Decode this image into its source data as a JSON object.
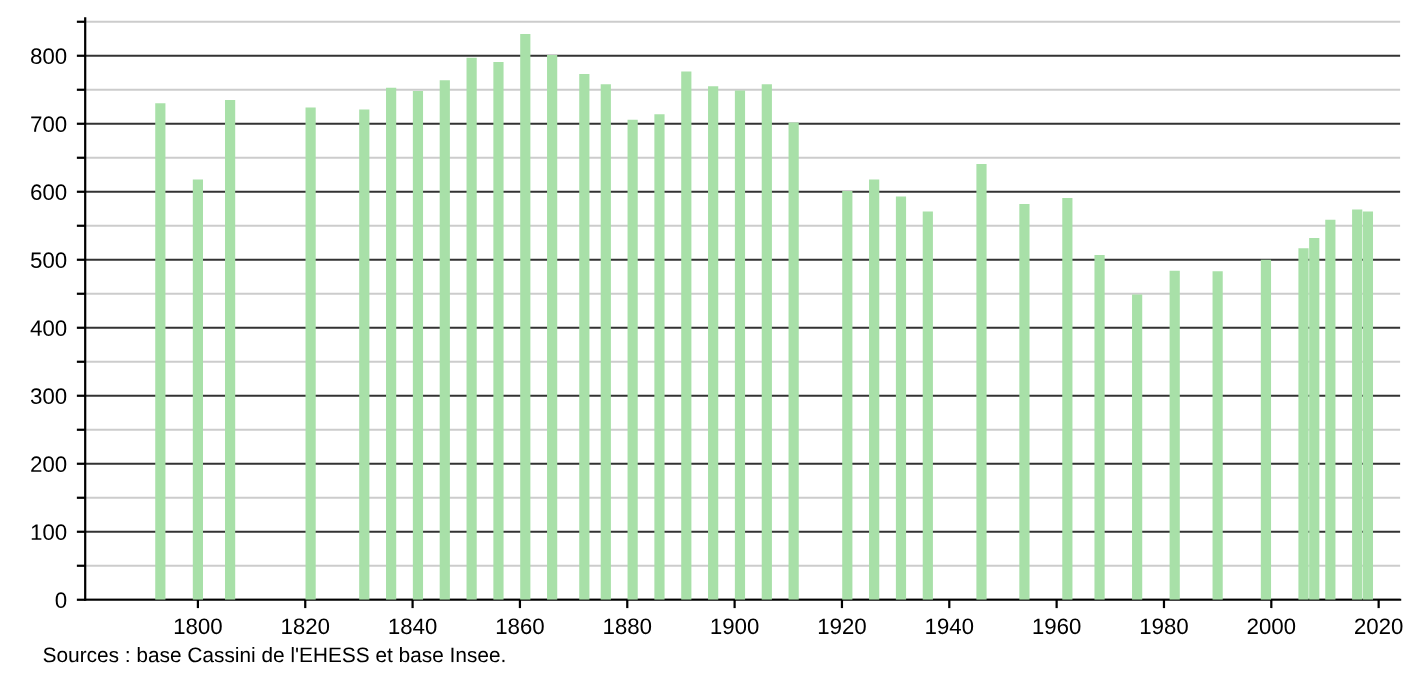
{
  "chart_data": {
    "type": "bar",
    "x": [
      1793,
      1800,
      1806,
      1821,
      1831,
      1836,
      1841,
      1846,
      1851,
      1856,
      1861,
      1866,
      1872,
      1876,
      1881,
      1886,
      1891,
      1896,
      1901,
      1906,
      1911,
      1921,
      1926,
      1931,
      1936,
      1946,
      1954,
      1962,
      1968,
      1975,
      1982,
      1990,
      1999,
      2006,
      2008,
      2011,
      2016,
      2018
    ],
    "values": [
      730,
      618,
      735,
      724,
      721,
      753,
      748,
      764,
      797,
      791,
      832,
      801,
      773,
      758,
      706,
      714,
      777,
      755,
      749,
      758,
      702,
      601,
      618,
      593,
      571,
      641,
      582,
      591,
      507,
      449,
      484,
      483,
      500,
      517,
      532,
      559,
      574,
      571
    ],
    "color": "#a8e0a8",
    "xlim": [
      1779,
      2024
    ],
    "xticks": [
      1800,
      1820,
      1840,
      1860,
      1880,
      1900,
      1920,
      1940,
      1960,
      1980,
      2000,
      2020
    ],
    "ylim": [
      0,
      855
    ],
    "yticks": [
      0,
      {
        "value": 50,
        "label": null
      },
      100,
      {
        "value": 150,
        "label": null
      },
      200,
      {
        "value": 250,
        "label": null
      },
      300,
      {
        "value": 350,
        "label": null
      },
      400,
      {
        "value": 450,
        "label": null
      },
      500,
      {
        "value": 550,
        "label": null
      },
      600,
      {
        "value": 650,
        "label": null
      },
      700,
      {
        "value": 750,
        "label": null
      },
      800,
      {
        "value": 850,
        "label": null
      }
    ],
    "grid": "y",
    "annotations": [
      "Sources : base Cassini de l'EHESS et base Insee."
    ]
  }
}
